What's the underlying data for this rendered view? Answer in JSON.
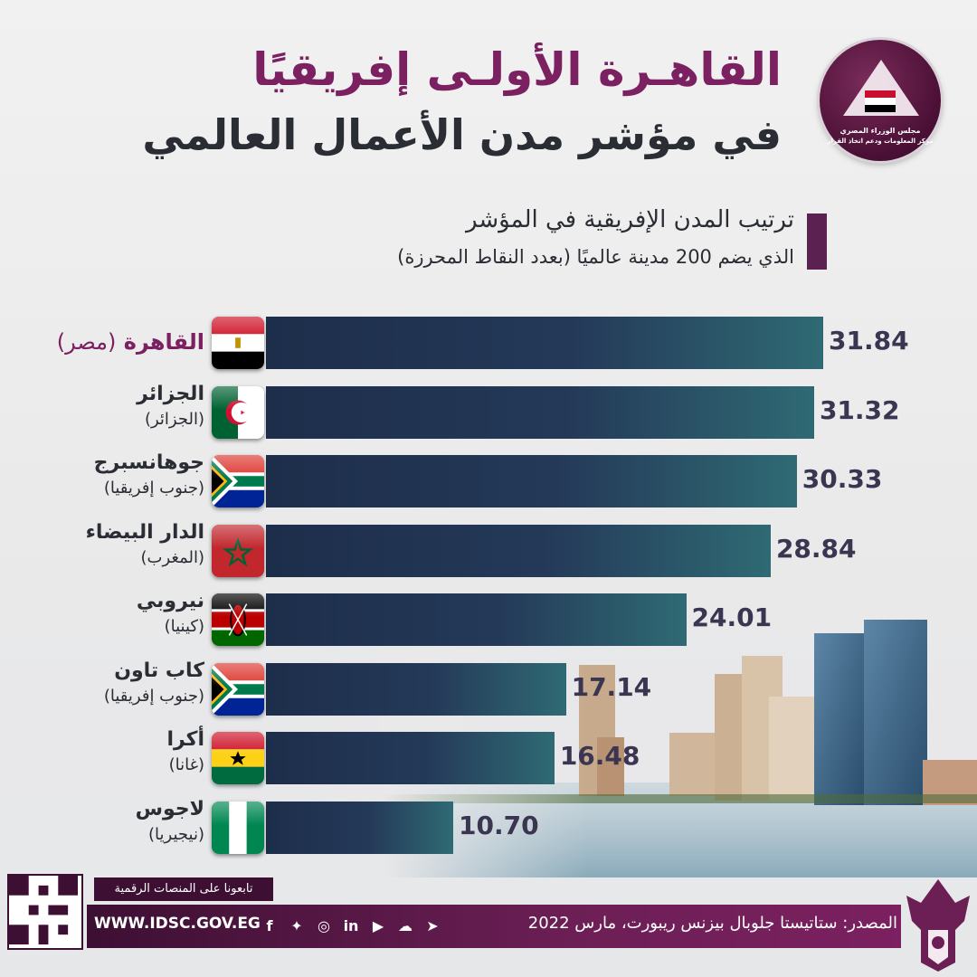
{
  "header": {
    "title_line1": "القاهـرة الأولـى إفريقيًا",
    "title_line2": "في مؤشر مدن الأعمال العالمي",
    "subtitle_line1": "ترتيب المدن الإفريقية في المؤشر",
    "subtitle_line2": "الذي يضم 200 مدينة عالميًا (بعدد النقاط المحرزة)",
    "logo_line1": "مجلس الوزراء المصري",
    "logo_line2": "مركز المعلومات ودعم اتخاذ القرار"
  },
  "chart_data": {
    "type": "bar",
    "orientation": "horizontal",
    "title": "ترتيب المدن الإفريقية في المؤشر",
    "categories": [
      "القاهرة",
      "الجزائر",
      "جوهانسبرج",
      "الدار البيضاء",
      "نيروبي",
      "كاب تاون",
      "أكرا",
      "لاجوس"
    ],
    "countries": [
      "(مصر)",
      "(الجزائر)",
      "(جنوب إفريقيا)",
      "(المغرب)",
      "(كينيا)",
      "(جنوب إفريقيا)",
      "(غانا)",
      "(نيجيريا)"
    ],
    "flags": [
      "egypt-flag",
      "algeria-flag",
      "south-africa-flag",
      "morocco-flag",
      "kenya-flag",
      "south-africa-flag",
      "ghana-flag",
      "nigeria-flag"
    ],
    "values": [
      31.84,
      31.32,
      30.33,
      28.84,
      24.01,
      17.14,
      16.48,
      10.7
    ],
    "value_labels": [
      "31.84",
      "31.32",
      "30.33",
      "28.84",
      "24.01",
      "17.14",
      "16.48",
      "10.70"
    ],
    "xlim": [
      0,
      31.84
    ]
  },
  "footer": {
    "follow_text": "تابعونا على المنصات الرقمية",
    "website": "WWW.IDSC.GOV.EG",
    "source": "المصدر: ستاتيستا جلوبال بيزنس ريبورت، مارس 2022",
    "social_icons": [
      "facebook-icon",
      "twitter-icon",
      "instagram-icon",
      "linkedin-icon",
      "youtube-icon",
      "soundcloud-icon",
      "telegram-icon"
    ]
  },
  "colors": {
    "accent": "#7b2060",
    "bar_dark": "#1d2e4b",
    "bar_light": "#2f6a74",
    "text": "#2a2d34"
  }
}
